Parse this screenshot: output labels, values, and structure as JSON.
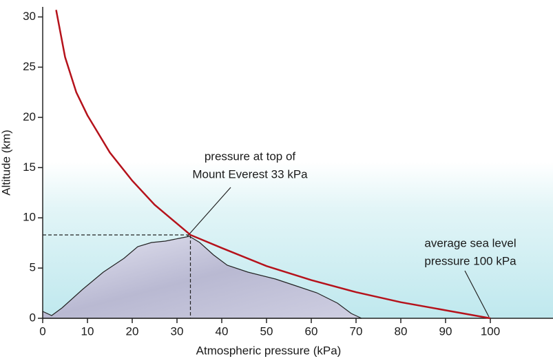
{
  "chart_data": {
    "type": "line",
    "x_label": "Atmospheric pressure (kPa)",
    "y_label": "Altitude (km)",
    "x": [
      3,
      5,
      7.5,
      10,
      15,
      20,
      25,
      33,
      40,
      50,
      60,
      70,
      80,
      90,
      100
    ],
    "series": [
      {
        "color": "#b5121b",
        "values": [
          30.7,
          26,
          22.5,
          20.2,
          16.5,
          13.7,
          11.3,
          8.3,
          7.0,
          5.2,
          3.8,
          2.6,
          1.6,
          0.8,
          0
        ]
      }
    ],
    "reference_point": {
      "x": 33,
      "y": 8.3
    },
    "annotations": [
      {
        "lines": [
          "pressure at top of",
          "Mount Everest 33 kPa"
        ]
      },
      {
        "lines": [
          "average sea level",
          "pressure 100 kPa"
        ]
      }
    ],
    "xlim": [
      0,
      114
    ],
    "ylim": [
      0,
      31
    ],
    "xticks": [
      0,
      10,
      20,
      30,
      40,
      50,
      60,
      70,
      80,
      90,
      100
    ],
    "yticks": [
      0,
      5,
      10,
      15,
      20,
      25,
      30
    ],
    "grid": false
  }
}
